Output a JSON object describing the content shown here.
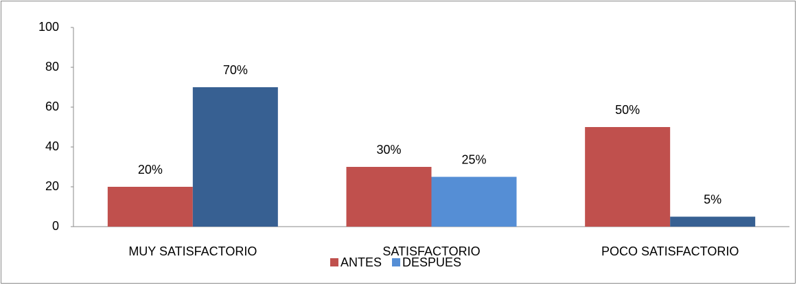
{
  "chart_data": {
    "type": "bar",
    "categories": [
      "MUY SATISFACTORIO",
      "SATISFACTORIO",
      "POCO SATISFACTORIO"
    ],
    "series": [
      {
        "name": "ANTES",
        "color": "#c0504d",
        "values": [
          20,
          30,
          50
        ],
        "value_labels": [
          "20%",
          "30%",
          "50%"
        ]
      },
      {
        "name": "DESPUES",
        "color": "#558ed5",
        "colors": [
          "#376092",
          "#558ed5",
          "#376092"
        ],
        "values": [
          70,
          25,
          5
        ],
        "value_labels": [
          "70%",
          "25%",
          "5%"
        ]
      }
    ],
    "ylim": [
      0,
      100
    ],
    "yticks": [
      0,
      20,
      40,
      60,
      80,
      100
    ],
    "grid": false,
    "legend": "bottom"
  }
}
